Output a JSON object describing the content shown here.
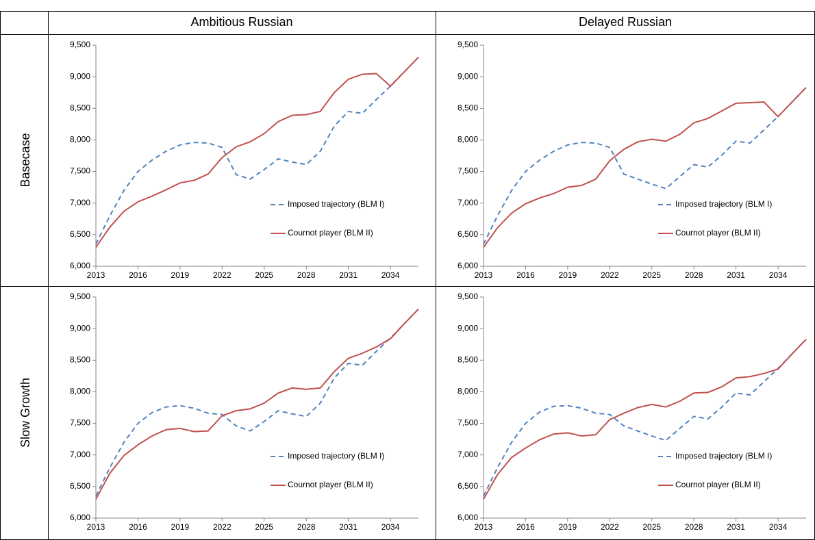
{
  "table": {
    "columns": [
      "Ambitious Russian",
      "Delayed Russian"
    ],
    "rows": [
      "Basecase",
      "Slow Growth"
    ]
  },
  "chart_data": [
    {
      "type": "line",
      "x": [
        2013,
        2014,
        2015,
        2016,
        2017,
        2018,
        2019,
        2020,
        2021,
        2022,
        2023,
        2024,
        2025,
        2026,
        2027,
        2028,
        2029,
        2030,
        2031,
        2032,
        2033,
        2034,
        2035,
        2036
      ],
      "xlim": [
        2013,
        2036
      ],
      "xticks": [
        2013,
        2016,
        2019,
        2022,
        2025,
        2028,
        2031,
        2034
      ],
      "ylim": [
        6000,
        9500
      ],
      "yticks": [
        {
          "value": 6000,
          "label": "6,000"
        },
        {
          "value": 6500,
          "label": "6,500"
        },
        {
          "value": 7000,
          "label": "7,000"
        },
        {
          "value": 7500,
          "label": "7,500"
        },
        {
          "value": 8000,
          "label": "8,000"
        },
        {
          "value": 8500,
          "label": "8,500"
        },
        {
          "value": 9000,
          "label": "9,000"
        },
        {
          "value": 9500,
          "label": "9,500"
        }
      ],
      "legend": "lower right",
      "series": [
        {
          "name": "Imposed trajectory (BLM I)",
          "color": "#4f81bd",
          "dashed": true,
          "values": [
            6350,
            6800,
            7200,
            7500,
            7680,
            7820,
            7920,
            7960,
            7950,
            7880,
            7450,
            7380,
            7530,
            7700,
            7650,
            7610,
            7820,
            8220,
            8450,
            8420,
            8640,
            8850,
            9080,
            9310
          ]
        },
        {
          "name": "Cournot player (BLM II)",
          "color": "#c0504d",
          "dashed": false,
          "values": [
            6300,
            6620,
            6870,
            7020,
            7110,
            7210,
            7320,
            7360,
            7460,
            7720,
            7890,
            7970,
            8100,
            8290,
            8390,
            8400,
            8450,
            8750,
            8960,
            9040,
            9050,
            8850,
            9080,
            9310
          ]
        }
      ]
    },
    {
      "type": "line",
      "x": [
        2013,
        2014,
        2015,
        2016,
        2017,
        2018,
        2019,
        2020,
        2021,
        2022,
        2023,
        2024,
        2025,
        2026,
        2027,
        2028,
        2029,
        2030,
        2031,
        2032,
        2033,
        2034,
        2035,
        2036
      ],
      "xlim": [
        2013,
        2036
      ],
      "xticks": [
        2013,
        2016,
        2019,
        2022,
        2025,
        2028,
        2031,
        2034
      ],
      "ylim": [
        6000,
        9500
      ],
      "yticks": [
        {
          "value": 6000,
          "label": "6,000"
        },
        {
          "value": 6500,
          "label": "6,500"
        },
        {
          "value": 7000,
          "label": "7,000"
        },
        {
          "value": 7500,
          "label": "7,500"
        },
        {
          "value": 8000,
          "label": "8,000"
        },
        {
          "value": 8500,
          "label": "8,500"
        },
        {
          "value": 9000,
          "label": "9,000"
        },
        {
          "value": 9500,
          "label": "9,500"
        }
      ],
      "legend": "lower right",
      "series": [
        {
          "name": "Imposed trajectory (BLM I)",
          "color": "#4f81bd",
          "dashed": true,
          "values": [
            6350,
            6800,
            7200,
            7500,
            7680,
            7820,
            7920,
            7960,
            7950,
            7880,
            7460,
            7380,
            7300,
            7230,
            7420,
            7610,
            7570,
            7760,
            7980,
            7950,
            8160,
            8370,
            8600,
            8830
          ]
        },
        {
          "name": "Cournot player (BLM II)",
          "color": "#c0504d",
          "dashed": false,
          "values": [
            6300,
            6610,
            6840,
            6990,
            7080,
            7150,
            7250,
            7280,
            7380,
            7670,
            7850,
            7970,
            8010,
            7980,
            8090,
            8270,
            8340,
            8460,
            8580,
            8590,
            8600,
            8370,
            8600,
            8830
          ]
        }
      ]
    },
    {
      "type": "line",
      "x": [
        2013,
        2014,
        2015,
        2016,
        2017,
        2018,
        2019,
        2020,
        2021,
        2022,
        2023,
        2024,
        2025,
        2026,
        2027,
        2028,
        2029,
        2030,
        2031,
        2032,
        2033,
        2034,
        2035,
        2036
      ],
      "xlim": [
        2013,
        2036
      ],
      "xticks": [
        2013,
        2016,
        2019,
        2022,
        2025,
        2028,
        2031,
        2034
      ],
      "ylim": [
        6000,
        9500
      ],
      "yticks": [
        {
          "value": 6000,
          "label": "6,000"
        },
        {
          "value": 6500,
          "label": "6,500"
        },
        {
          "value": 7000,
          "label": "7,000"
        },
        {
          "value": 7500,
          "label": "7,500"
        },
        {
          "value": 8000,
          "label": "8,000"
        },
        {
          "value": 8500,
          "label": "8,500"
        },
        {
          "value": 9000,
          "label": "9,000"
        },
        {
          "value": 9500,
          "label": "9,500"
        }
      ],
      "legend": "lower right",
      "series": [
        {
          "name": "Imposed trajectory (BLM I)",
          "color": "#4f81bd",
          "dashed": true,
          "values": [
            6350,
            6800,
            7200,
            7500,
            7670,
            7760,
            7780,
            7740,
            7660,
            7640,
            7460,
            7380,
            7530,
            7700,
            7650,
            7610,
            7820,
            8220,
            8450,
            8420,
            8640,
            8850,
            9080,
            9310
          ]
        },
        {
          "name": "Cournot player (BLM II)",
          "color": "#c0504d",
          "dashed": false,
          "values": [
            6300,
            6710,
            6990,
            7160,
            7300,
            7400,
            7420,
            7370,
            7380,
            7620,
            7700,
            7730,
            7820,
            7980,
            8060,
            8040,
            8060,
            8320,
            8530,
            8610,
            8710,
            8840,
            9080,
            9310
          ]
        }
      ]
    },
    {
      "type": "line",
      "x": [
        2013,
        2014,
        2015,
        2016,
        2017,
        2018,
        2019,
        2020,
        2021,
        2022,
        2023,
        2024,
        2025,
        2026,
        2027,
        2028,
        2029,
        2030,
        2031,
        2032,
        2033,
        2034,
        2035,
        2036
      ],
      "xlim": [
        2013,
        2036
      ],
      "xticks": [
        2013,
        2016,
        2019,
        2022,
        2025,
        2028,
        2031,
        2034
      ],
      "ylim": [
        6000,
        9500
      ],
      "yticks": [
        {
          "value": 6000,
          "label": "6,000"
        },
        {
          "value": 6500,
          "label": "6,500"
        },
        {
          "value": 7000,
          "label": "7,000"
        },
        {
          "value": 7500,
          "label": "7,500"
        },
        {
          "value": 8000,
          "label": "8,000"
        },
        {
          "value": 8500,
          "label": "8,500"
        },
        {
          "value": 9000,
          "label": "9,000"
        },
        {
          "value": 9500,
          "label": "9,500"
        }
      ],
      "legend": "lower right",
      "series": [
        {
          "name": "Imposed trajectory (BLM I)",
          "color": "#4f81bd",
          "dashed": true,
          "values": [
            6350,
            6800,
            7200,
            7500,
            7680,
            7770,
            7780,
            7740,
            7660,
            7640,
            7460,
            7380,
            7300,
            7230,
            7420,
            7610,
            7570,
            7760,
            7980,
            7950,
            8160,
            8370,
            8600,
            8830
          ]
        },
        {
          "name": "Cournot player (BLM II)",
          "color": "#c0504d",
          "dashed": false,
          "values": [
            6300,
            6690,
            6960,
            7110,
            7240,
            7330,
            7350,
            7300,
            7320,
            7560,
            7660,
            7750,
            7800,
            7760,
            7850,
            7980,
            7990,
            8080,
            8220,
            8240,
            8290,
            8360,
            8600,
            8830
          ]
        }
      ]
    }
  ]
}
